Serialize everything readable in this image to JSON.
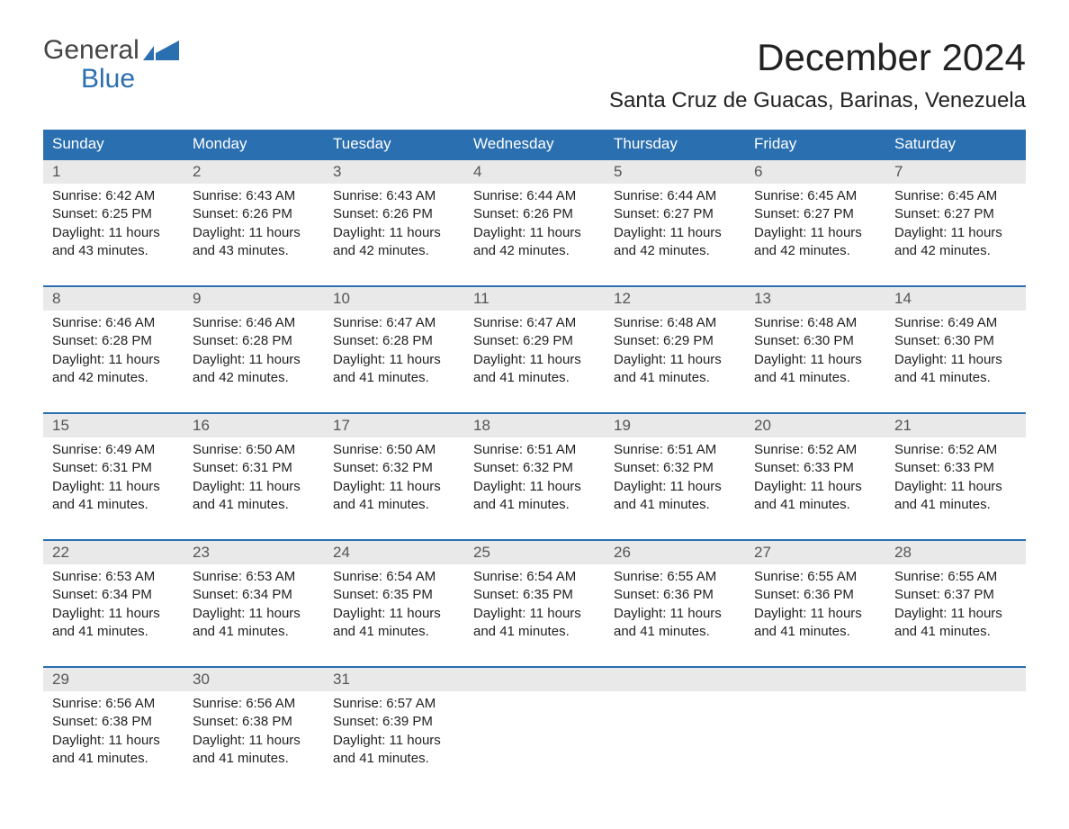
{
  "logo": {
    "top": "General",
    "bottom": "Blue",
    "accent_color": "#2a6fb0",
    "text_color": "#444444"
  },
  "title": "December 2024",
  "location": "Santa Cruz de Guacas, Barinas, Venezuela",
  "colors": {
    "header_bg": "#2a6fb0",
    "header_text": "#ffffff",
    "daynum_bg": "#e9e9e9",
    "daynum_text": "#555555",
    "body_text": "#222222",
    "row_border": "#2a6fb0"
  },
  "day_headers": [
    "Sunday",
    "Monday",
    "Tuesday",
    "Wednesday",
    "Thursday",
    "Friday",
    "Saturday"
  ],
  "weeks": [
    [
      {
        "n": "1",
        "sunrise": "6:42 AM",
        "sunset": "6:25 PM",
        "daylight": "11 hours and 43 minutes."
      },
      {
        "n": "2",
        "sunrise": "6:43 AM",
        "sunset": "6:26 PM",
        "daylight": "11 hours and 43 minutes."
      },
      {
        "n": "3",
        "sunrise": "6:43 AM",
        "sunset": "6:26 PM",
        "daylight": "11 hours and 42 minutes."
      },
      {
        "n": "4",
        "sunrise": "6:44 AM",
        "sunset": "6:26 PM",
        "daylight": "11 hours and 42 minutes."
      },
      {
        "n": "5",
        "sunrise": "6:44 AM",
        "sunset": "6:27 PM",
        "daylight": "11 hours and 42 minutes."
      },
      {
        "n": "6",
        "sunrise": "6:45 AM",
        "sunset": "6:27 PM",
        "daylight": "11 hours and 42 minutes."
      },
      {
        "n": "7",
        "sunrise": "6:45 AM",
        "sunset": "6:27 PM",
        "daylight": "11 hours and 42 minutes."
      }
    ],
    [
      {
        "n": "8",
        "sunrise": "6:46 AM",
        "sunset": "6:28 PM",
        "daylight": "11 hours and 42 minutes."
      },
      {
        "n": "9",
        "sunrise": "6:46 AM",
        "sunset": "6:28 PM",
        "daylight": "11 hours and 42 minutes."
      },
      {
        "n": "10",
        "sunrise": "6:47 AM",
        "sunset": "6:28 PM",
        "daylight": "11 hours and 41 minutes."
      },
      {
        "n": "11",
        "sunrise": "6:47 AM",
        "sunset": "6:29 PM",
        "daylight": "11 hours and 41 minutes."
      },
      {
        "n": "12",
        "sunrise": "6:48 AM",
        "sunset": "6:29 PM",
        "daylight": "11 hours and 41 minutes."
      },
      {
        "n": "13",
        "sunrise": "6:48 AM",
        "sunset": "6:30 PM",
        "daylight": "11 hours and 41 minutes."
      },
      {
        "n": "14",
        "sunrise": "6:49 AM",
        "sunset": "6:30 PM",
        "daylight": "11 hours and 41 minutes."
      }
    ],
    [
      {
        "n": "15",
        "sunrise": "6:49 AM",
        "sunset": "6:31 PM",
        "daylight": "11 hours and 41 minutes."
      },
      {
        "n": "16",
        "sunrise": "6:50 AM",
        "sunset": "6:31 PM",
        "daylight": "11 hours and 41 minutes."
      },
      {
        "n": "17",
        "sunrise": "6:50 AM",
        "sunset": "6:32 PM",
        "daylight": "11 hours and 41 minutes."
      },
      {
        "n": "18",
        "sunrise": "6:51 AM",
        "sunset": "6:32 PM",
        "daylight": "11 hours and 41 minutes."
      },
      {
        "n": "19",
        "sunrise": "6:51 AM",
        "sunset": "6:32 PM",
        "daylight": "11 hours and 41 minutes."
      },
      {
        "n": "20",
        "sunrise": "6:52 AM",
        "sunset": "6:33 PM",
        "daylight": "11 hours and 41 minutes."
      },
      {
        "n": "21",
        "sunrise": "6:52 AM",
        "sunset": "6:33 PM",
        "daylight": "11 hours and 41 minutes."
      }
    ],
    [
      {
        "n": "22",
        "sunrise": "6:53 AM",
        "sunset": "6:34 PM",
        "daylight": "11 hours and 41 minutes."
      },
      {
        "n": "23",
        "sunrise": "6:53 AM",
        "sunset": "6:34 PM",
        "daylight": "11 hours and 41 minutes."
      },
      {
        "n": "24",
        "sunrise": "6:54 AM",
        "sunset": "6:35 PM",
        "daylight": "11 hours and 41 minutes."
      },
      {
        "n": "25",
        "sunrise": "6:54 AM",
        "sunset": "6:35 PM",
        "daylight": "11 hours and 41 minutes."
      },
      {
        "n": "26",
        "sunrise": "6:55 AM",
        "sunset": "6:36 PM",
        "daylight": "11 hours and 41 minutes."
      },
      {
        "n": "27",
        "sunrise": "6:55 AM",
        "sunset": "6:36 PM",
        "daylight": "11 hours and 41 minutes."
      },
      {
        "n": "28",
        "sunrise": "6:55 AM",
        "sunset": "6:37 PM",
        "daylight": "11 hours and 41 minutes."
      }
    ],
    [
      {
        "n": "29",
        "sunrise": "6:56 AM",
        "sunset": "6:38 PM",
        "daylight": "11 hours and 41 minutes."
      },
      {
        "n": "30",
        "sunrise": "6:56 AM",
        "sunset": "6:38 PM",
        "daylight": "11 hours and 41 minutes."
      },
      {
        "n": "31",
        "sunrise": "6:57 AM",
        "sunset": "6:39 PM",
        "daylight": "11 hours and 41 minutes."
      },
      null,
      null,
      null,
      null
    ]
  ],
  "labels": {
    "sunrise": "Sunrise: ",
    "sunset": "Sunset: ",
    "daylight": "Daylight: "
  }
}
